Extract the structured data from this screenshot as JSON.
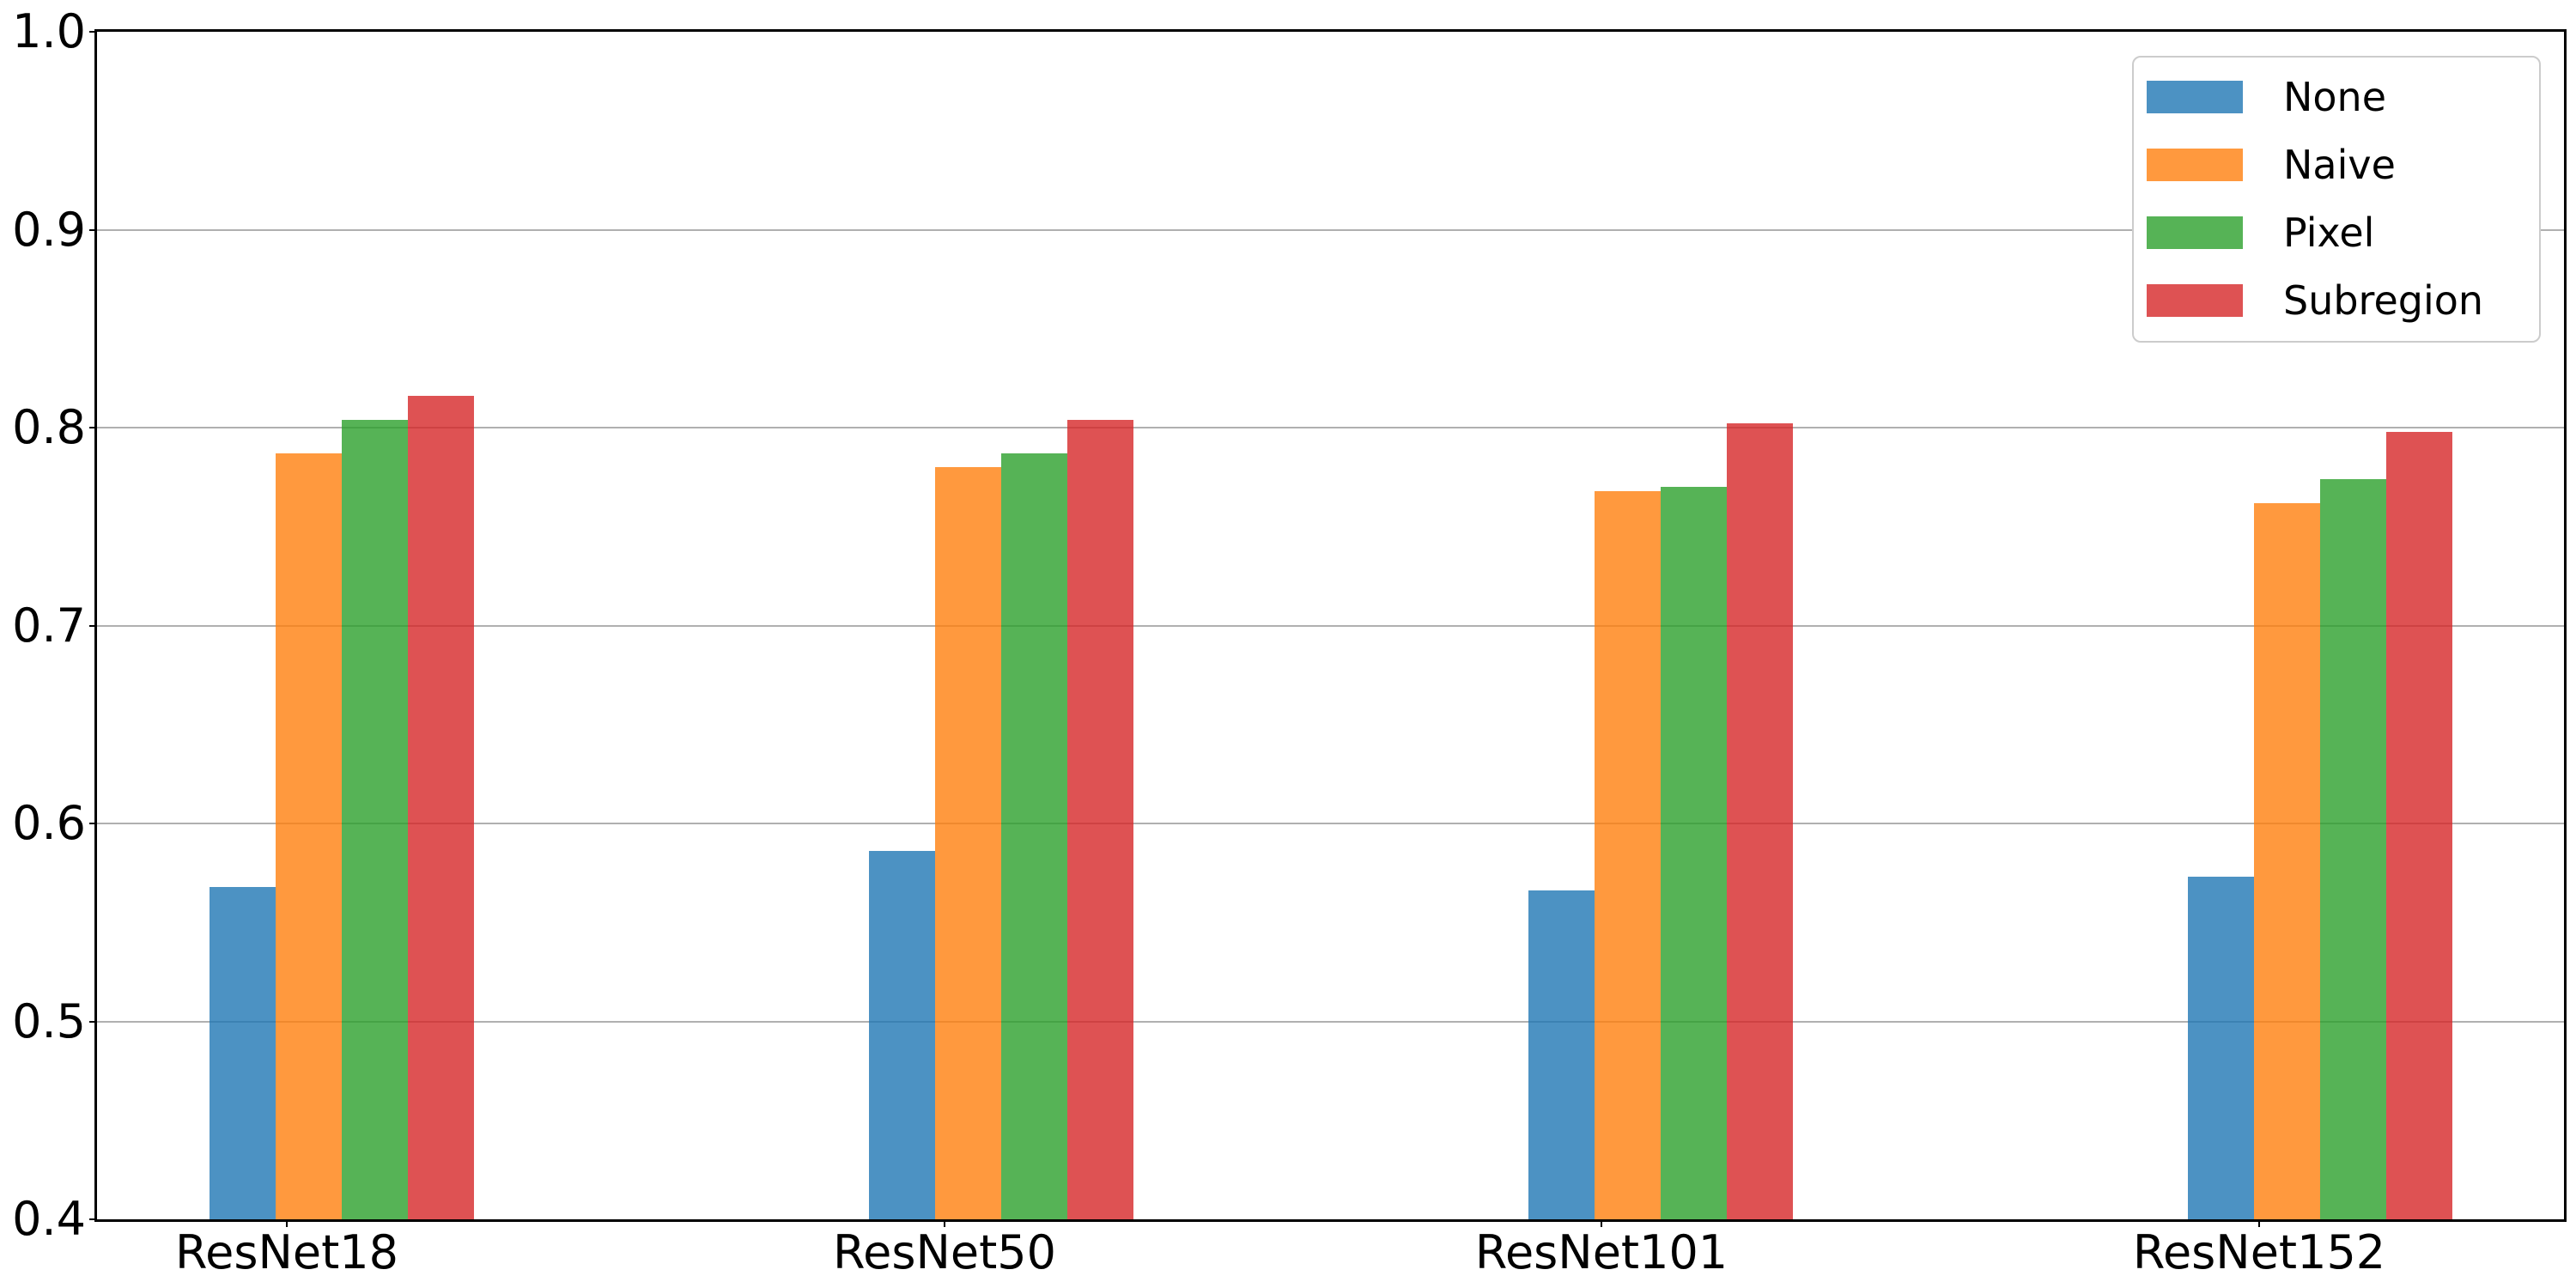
{
  "figure": {
    "background": "#ffffff",
    "spine_color": "#000000",
    "grid_color": "#b0b0b0"
  },
  "axes": {
    "ytick_labels": [
      "1.0",
      "0.9",
      "0.8",
      "0.7",
      "0.6",
      "0.5",
      "0.4"
    ],
    "ytick_values": [
      1.0,
      0.9,
      0.8,
      0.7,
      0.6,
      0.5,
      0.4
    ]
  },
  "chart_data": {
    "type": "bar",
    "title": "",
    "xlabel": "",
    "ylabel": "",
    "categories": [
      "ResNet18",
      "ResNet50",
      "ResNet101",
      "ResNet152"
    ],
    "series": [
      {
        "name": "None",
        "color": "#1f77b4",
        "alpha": 0.8,
        "values": [
          0.568,
          0.586,
          0.566,
          0.573
        ]
      },
      {
        "name": "Naive",
        "color": "#ff7f0e",
        "alpha": 0.8,
        "values": [
          0.787,
          0.78,
          0.768,
          0.762
        ]
      },
      {
        "name": "Pixel",
        "color": "#2ca02c",
        "alpha": 0.8,
        "values": [
          0.804,
          0.787,
          0.77,
          0.774
        ]
      },
      {
        "name": "Subregion",
        "color": "#d62728",
        "alpha": 0.8,
        "values": [
          0.816,
          0.804,
          0.802,
          0.798
        ]
      }
    ],
    "ylim": [
      0.4,
      1.0
    ],
    "grid": "horizontal",
    "legend_position": "upper right"
  }
}
